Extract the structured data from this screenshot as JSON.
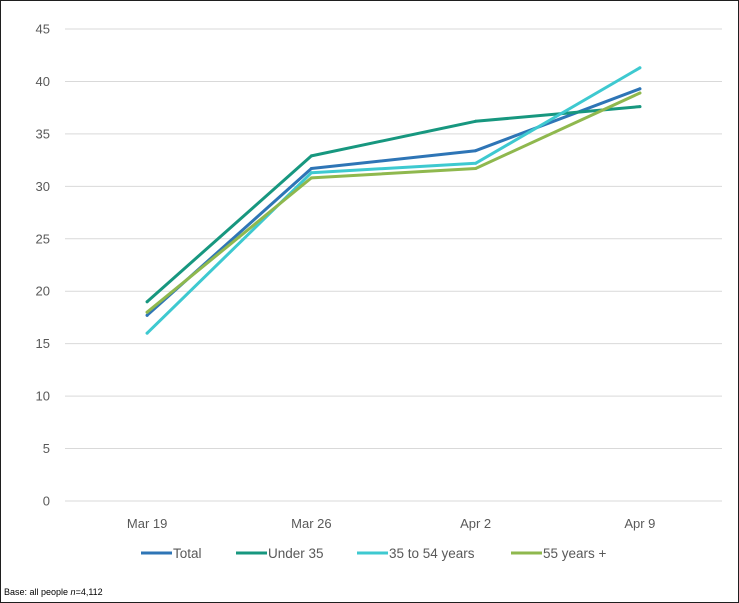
{
  "chart_data": {
    "type": "line",
    "title": "",
    "xlabel": "",
    "ylabel": "",
    "categories": [
      "Mar 19",
      "Mar 26",
      "Apr 2",
      "Apr 9"
    ],
    "ylim": [
      0,
      45
    ],
    "yticks": [
      0,
      5,
      10,
      15,
      20,
      25,
      30,
      35,
      40,
      45
    ],
    "grid": true,
    "legend_position": "bottom",
    "series": [
      {
        "name": "Total",
        "color": "#2e75b6",
        "values": [
          17.7,
          31.7,
          33.4,
          39.3
        ]
      },
      {
        "name": "Under 35",
        "color": "#17977f",
        "values": [
          19.0,
          32.9,
          36.2,
          37.6
        ]
      },
      {
        "name": "35 to 54 years",
        "color": "#3ec9d0",
        "values": [
          16.0,
          31.3,
          32.2,
          41.3
        ]
      },
      {
        "name": "55 years +",
        "color": "#8fb84e",
        "values": [
          18.0,
          30.8,
          31.7,
          38.9
        ]
      }
    ]
  },
  "footnote": {
    "prefix": "Base: all people ",
    "n_symbol": "n",
    "value": "=4,112"
  }
}
